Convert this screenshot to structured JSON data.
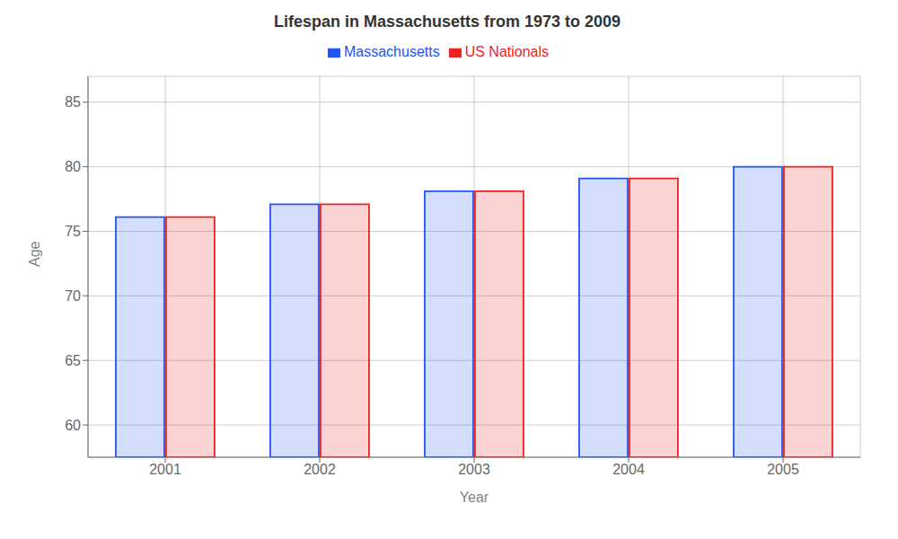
{
  "chart_data": {
    "type": "bar",
    "title": "Lifespan in Massachusetts from 1973 to 2009",
    "x_label": "Year",
    "y_label": "Age",
    "categories": [
      "2001",
      "2002",
      "2003",
      "2004",
      "2005"
    ],
    "series": [
      {
        "name": "Massachusetts",
        "color": "#2255ee",
        "values": [
          76.1,
          77.1,
          78.1,
          79.1,
          80.0
        ]
      },
      {
        "name": "US Nationals",
        "color": "#ee2222",
        "values": [
          76.1,
          77.1,
          78.1,
          79.1,
          80.0
        ]
      }
    ],
    "ylim": [
      57.5,
      87
    ],
    "yticks": [
      60,
      65,
      70,
      75,
      80,
      85
    ],
    "grid": true,
    "legend": "top"
  }
}
